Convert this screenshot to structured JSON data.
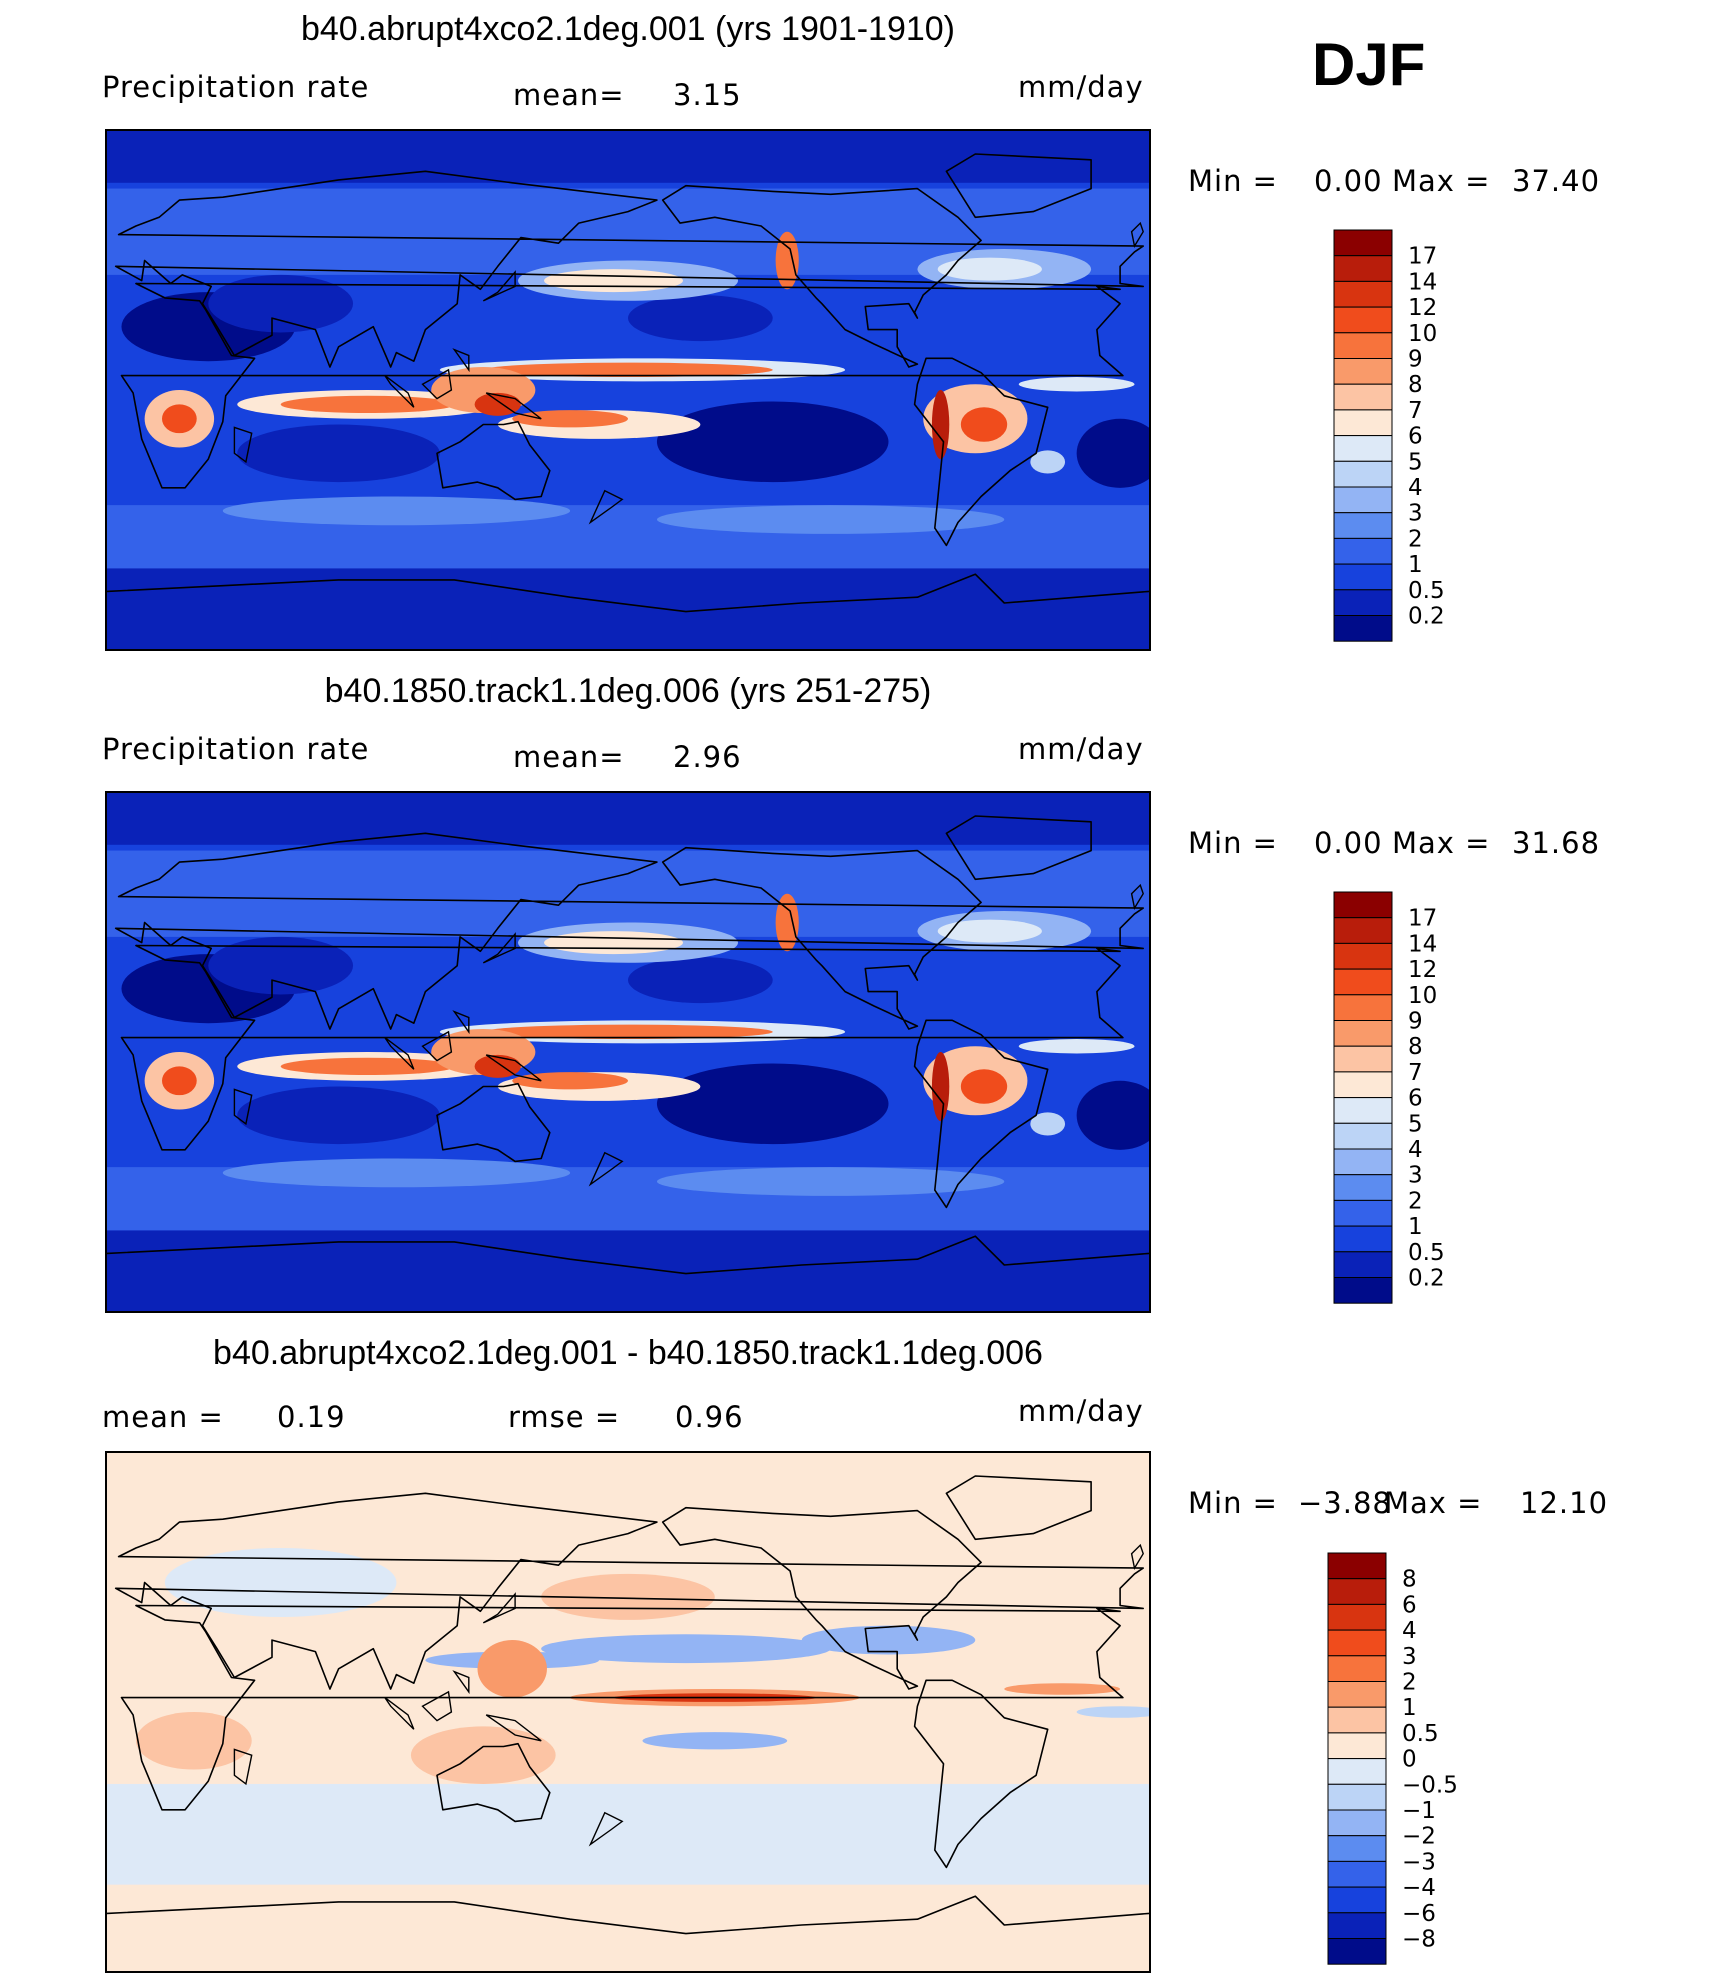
{
  "season": "DJF",
  "panels": [
    {
      "title": "b40.abrupt4xco2.1deg.001 (yrs 1901-1910)",
      "left_label": "Precipitation  rate",
      "mid_label": "mean=",
      "mid_value": "3.15",
      "units": "mm/day",
      "min_label": "Min  =",
      "min_value": "0.00",
      "max_label": "Max  =",
      "max_value": "37.40",
      "mode": "precip"
    },
    {
      "title": "b40.1850.track1.1deg.006 (yrs 251-275)",
      "left_label": "Precipitation  rate",
      "mid_label": "mean=",
      "mid_value": "2.96",
      "units": "mm/day",
      "min_label": "Min  =",
      "min_value": "0.00",
      "max_label": "Max  =",
      "max_value": "31.68",
      "mode": "precip"
    },
    {
      "title": "b40.abrupt4xco2.1deg.001 - b40.1850.track1.1deg.006",
      "left_label": "mean  =",
      "left_value": "0.19",
      "mid_label": "rmse  =",
      "mid_value": "0.96",
      "units": "mm/day",
      "min_label": "Min  =",
      "min_value": "−3.88",
      "max_label": "Max  =",
      "max_value": "12.10",
      "mode": "diff"
    }
  ],
  "chart_data": [
    {
      "type": "heatmap",
      "title": "b40.abrupt4xco2.1deg.001 (yrs 1901-1910)",
      "variable": "Precipitation rate",
      "units": "mm/day",
      "mean": 3.15,
      "min": 0.0,
      "max": 37.4,
      "colorbar_levels": [
        "17",
        "14",
        "12",
        "10",
        "9",
        "8",
        "7",
        "6",
        "5",
        "4",
        "3",
        "2",
        "1",
        "0.5",
        "0.2"
      ],
      "colorbar_colors": [
        "#8b0000",
        "#b81d0b",
        "#d83410",
        "#f04c1c",
        "#f7733c",
        "#f99a6a",
        "#fcc4a4",
        "#fde8d6",
        "#dde9f7",
        "#bcd4f6",
        "#93b4f4",
        "#5c8cf0",
        "#3462ea",
        "#1742dd",
        "#0a22b8",
        "#000c8a"
      ],
      "x_range_deg": [
        0,
        360
      ],
      "y_range_deg": [
        -90,
        90
      ]
    },
    {
      "type": "heatmap",
      "title": "b40.1850.track1.1deg.006 (yrs 251-275)",
      "variable": "Precipitation rate",
      "units": "mm/day",
      "mean": 2.96,
      "min": 0.0,
      "max": 31.68,
      "colorbar_levels": [
        "17",
        "14",
        "12",
        "10",
        "9",
        "8",
        "7",
        "6",
        "5",
        "4",
        "3",
        "2",
        "1",
        "0.5",
        "0.2"
      ],
      "colorbar_colors": [
        "#8b0000",
        "#b81d0b",
        "#d83410",
        "#f04c1c",
        "#f7733c",
        "#f99a6a",
        "#fcc4a4",
        "#fde8d6",
        "#dde9f7",
        "#bcd4f6",
        "#93b4f4",
        "#5c8cf0",
        "#3462ea",
        "#1742dd",
        "#0a22b8",
        "#000c8a"
      ],
      "x_range_deg": [
        0,
        360
      ],
      "y_range_deg": [
        -90,
        90
      ]
    },
    {
      "type": "heatmap",
      "title": "b40.abrupt4xco2.1deg.001 - b40.1850.track1.1deg.006",
      "units": "mm/day",
      "mean": 0.19,
      "rmse": 0.96,
      "min": -3.88,
      "max": 12.1,
      "colorbar_levels": [
        "8",
        "6",
        "4",
        "3",
        "2",
        "1",
        "0.5",
        "0",
        "−0.5",
        "−1",
        "−2",
        "−3",
        "−4",
        "−6",
        "−8"
      ],
      "colorbar_colors": [
        "#8b0000",
        "#b81d0b",
        "#d83410",
        "#f04c1c",
        "#f7733c",
        "#f99a6a",
        "#fcc4a4",
        "#fde8d6",
        "#dde9f7",
        "#bcd4f6",
        "#93b4f4",
        "#5c8cf0",
        "#3462ea",
        "#1742dd",
        "#0a22b8",
        "#000c8a"
      ],
      "x_range_deg": [
        0,
        360
      ],
      "y_range_deg": [
        -90,
        90
      ]
    }
  ]
}
